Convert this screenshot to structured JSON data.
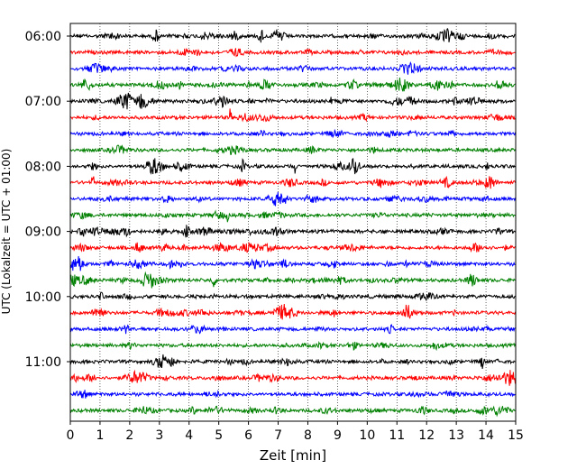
{
  "chart_data": {
    "type": "line",
    "title": "",
    "xlabel": "Zeit  [min]",
    "ylabel": "UTC (Lokalzeit = UTC + 01:00)",
    "xlim": [
      0,
      15
    ],
    "x_ticks": [
      "0",
      "1",
      "2",
      "3",
      "4",
      "5",
      "6",
      "7",
      "8",
      "9",
      "10",
      "11",
      "12",
      "13",
      "14",
      "15"
    ],
    "y_tick_labels": [
      "06:00",
      "07:00",
      "08:00",
      "09:00",
      "10:00",
      "11:00"
    ],
    "grid": "vertical dotted",
    "trace_colors": [
      "#000000",
      "#ff0000",
      "#0000ff",
      "#008000"
    ],
    "traces": [
      {
        "start": "06:00",
        "color": "#000000"
      },
      {
        "start": "06:15",
        "color": "#ff0000"
      },
      {
        "start": "06:30",
        "color": "#0000ff"
      },
      {
        "start": "06:45",
        "color": "#008000"
      },
      {
        "start": "07:00",
        "color": "#000000"
      },
      {
        "start": "07:15",
        "color": "#ff0000"
      },
      {
        "start": "07:30",
        "color": "#0000ff"
      },
      {
        "start": "07:45",
        "color": "#008000"
      },
      {
        "start": "08:00",
        "color": "#000000"
      },
      {
        "start": "08:15",
        "color": "#ff0000"
      },
      {
        "start": "08:30",
        "color": "#0000ff"
      },
      {
        "start": "08:45",
        "color": "#008000"
      },
      {
        "start": "09:00",
        "color": "#000000"
      },
      {
        "start": "09:15",
        "color": "#ff0000"
      },
      {
        "start": "09:30",
        "color": "#0000ff"
      },
      {
        "start": "09:45",
        "color": "#008000"
      },
      {
        "start": "10:00",
        "color": "#000000"
      },
      {
        "start": "10:15",
        "color": "#ff0000"
      },
      {
        "start": "10:30",
        "color": "#0000ff"
      },
      {
        "start": "10:45",
        "color": "#008000"
      },
      {
        "start": "11:00",
        "color": "#000000"
      },
      {
        "start": "11:15",
        "color": "#ff0000"
      },
      {
        "start": "11:30",
        "color": "#0000ff"
      },
      {
        "start": "11:45",
        "color": "#008000"
      }
    ]
  }
}
